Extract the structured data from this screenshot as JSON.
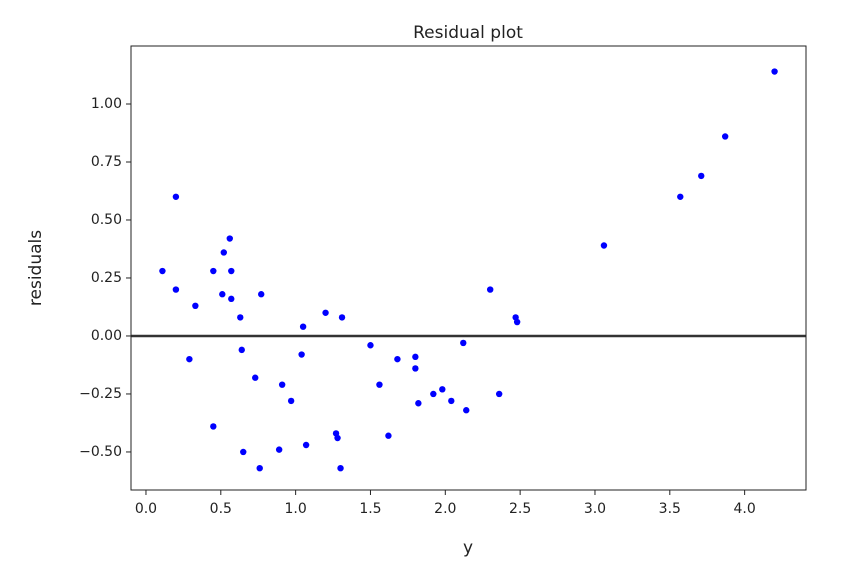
{
  "chart_data": {
    "type": "scatter",
    "title": "Residual plot",
    "x_label": "y",
    "y_label": "residuals",
    "series": [
      {
        "color": "#0000ff",
        "x": [
          0.11,
          0.2,
          0.2,
          0.29,
          0.33,
          0.45,
          0.45,
          0.51,
          0.52,
          0.56,
          0.57,
          0.57,
          0.63,
          0.64,
          0.65,
          0.73,
          0.76,
          0.77,
          0.89,
          0.91,
          0.97,
          1.04,
          1.05,
          1.07,
          1.2,
          1.27,
          1.28,
          1.3,
          1.31,
          1.5,
          1.56,
          1.62,
          1.68,
          1.8,
          1.8,
          1.82,
          1.92,
          1.98,
          2.04,
          2.12,
          2.14,
          2.3,
          2.36,
          2.47,
          2.48,
          3.06,
          3.57,
          3.71,
          3.87,
          4.2
        ],
        "values": [
          0.28,
          0.6,
          0.2,
          -0.1,
          0.13,
          0.28,
          -0.39,
          0.18,
          0.36,
          0.42,
          0.28,
          0.16,
          0.08,
          -0.06,
          -0.5,
          -0.18,
          -0.57,
          0.18,
          -0.49,
          -0.21,
          -0.28,
          -0.08,
          0.04,
          -0.47,
          0.1,
          -0.42,
          -0.44,
          -0.57,
          0.08,
          -0.04,
          -0.21,
          -0.43,
          -0.1,
          -0.09,
          -0.14,
          -0.29,
          -0.25,
          -0.23,
          -0.28,
          -0.03,
          -0.32,
          0.2,
          -0.25,
          0.08,
          0.06,
          0.39,
          0.6,
          0.69,
          0.86,
          1.14
        ]
      }
    ],
    "hline": 0,
    "hline_color": "#333333",
    "xlim": [
      -0.1,
      4.41
    ],
    "ylim": [
      -0.664,
      1.25
    ],
    "xticks": [
      {
        "value": 0,
        "label": "0.0"
      },
      0.5,
      {
        "value": 1,
        "label": "1.0"
      },
      1.5,
      {
        "value": 2,
        "label": "2.0"
      },
      2.5,
      {
        "value": 3,
        "label": "3.0"
      },
      3.5,
      {
        "value": 4,
        "label": "4.0"
      }
    ],
    "yticks": [
      {
        "value": -0.5,
        "label": "−0.50"
      },
      {
        "value": -0.25,
        "label": "−0.25"
      },
      {
        "value": 0,
        "label": "0.00"
      },
      0.25,
      {
        "value": 0.5,
        "label": "0.50"
      },
      0.75,
      {
        "value": 1,
        "label": "1.00"
      }
    ],
    "grid": false
  }
}
